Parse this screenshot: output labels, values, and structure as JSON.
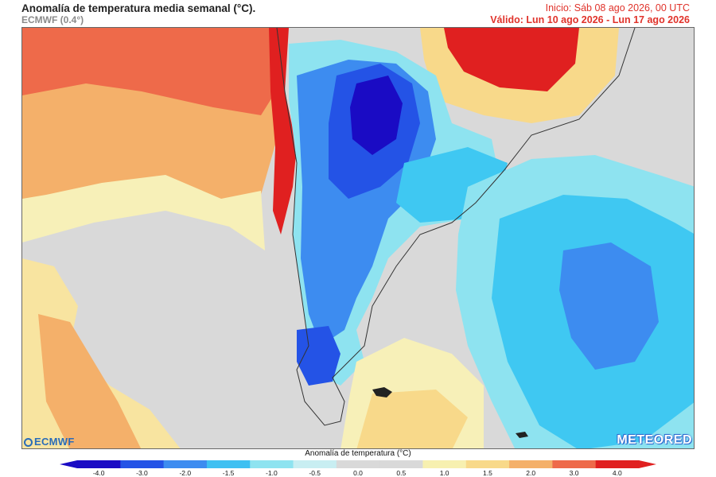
{
  "header": {
    "title": "Anomalía de temperatura media semanal (°C).",
    "model": "ECMWF (0.4°)",
    "init": "Inicio: Sáb 08 ago 2026, 00 UTC",
    "valid": "Válido: Lun 10 ago 2026 - Lun 17 ago 2026"
  },
  "logos": {
    "left": "ECMWF",
    "right": "METEORED"
  },
  "legend": {
    "title": "Anomalía de temperatura (°C)",
    "ticks": [
      "-4.0",
      "-3.0",
      "-2.0",
      "-1.5",
      "-1.0",
      "-0.5",
      "0.0",
      "0.5",
      "1.0",
      "1.5",
      "2.0",
      "3.0",
      "4.0"
    ],
    "colors": [
      "#1a0bc4",
      "#2453e6",
      "#3d8cf0",
      "#3fc0f2",
      "#8ee3f0",
      "#c8eef2",
      "#d9d9d9",
      "#d9d9d9",
      "#f7f0b0",
      "#f8d98a",
      "#f4b06a",
      "#ee6a4a",
      "#e02020"
    ]
  },
  "map": {
    "colors": {
      "warm_strong": "#e02020",
      "warm_mid": "#ee6a4a",
      "warm_light": "#f4b06a",
      "yellow": "#f8e4a0",
      "pale_yellow": "#f7f0b8",
      "neutral": "#d9d9d9",
      "cyan_light": "#8ee3f0",
      "cyan": "#3fc8f2",
      "blue": "#3d8cf0",
      "blue_deep": "#2453e6",
      "blue_darkest": "#1a0bc4"
    }
  }
}
